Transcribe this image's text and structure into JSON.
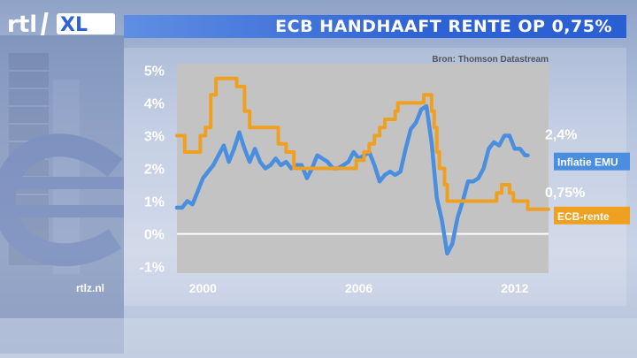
{
  "header": {
    "channel_logo_text": "rtl XL",
    "headline": "ECB HANDHAAFT RENTE OP 0,75%"
  },
  "footer": {
    "site": "rtlz.nl"
  },
  "colors": {
    "headline_bar": "#2e63d6",
    "inflation_line": "#4a8ee0",
    "ecb_line": "#f0a020",
    "plot_background": "#c3c3c3",
    "zero_line": "#ffffff"
  },
  "chart_data": {
    "type": "line",
    "source": "Bron: Thomson Datastream",
    "ylim": [
      -1.2,
      5.2
    ],
    "xlim": [
      1999.0,
      2013.3
    ],
    "y_ticks": [
      {
        "value": 5,
        "label": "5%"
      },
      {
        "value": 4,
        "label": "4%"
      },
      {
        "value": 3,
        "label": "3%"
      },
      {
        "value": 2,
        "label": "2%"
      },
      {
        "value": 1,
        "label": "1%"
      },
      {
        "value": 0,
        "label": "0%"
      },
      {
        "value": -1,
        "label": "-1%"
      }
    ],
    "x_ticks": [
      {
        "value": 2000,
        "label": "2000"
      },
      {
        "value": 2006,
        "label": "2006"
      },
      {
        "value": 2012,
        "label": "2012"
      }
    ],
    "grid": false,
    "series": [
      {
        "name": "Inflatie EMU",
        "end_label": "2,4%",
        "color": "#4a8ee0",
        "points": [
          [
            1999.0,
            0.8
          ],
          [
            1999.2,
            0.8
          ],
          [
            1999.4,
            1.0
          ],
          [
            1999.6,
            0.9
          ],
          [
            1999.8,
            1.3
          ],
          [
            2000.0,
            1.7
          ],
          [
            2000.2,
            1.9
          ],
          [
            2000.4,
            2.1
          ],
          [
            2000.6,
            2.4
          ],
          [
            2000.8,
            2.7
          ],
          [
            2001.0,
            2.2
          ],
          [
            2001.2,
            2.6
          ],
          [
            2001.4,
            3.1
          ],
          [
            2001.6,
            2.6
          ],
          [
            2001.8,
            2.2
          ],
          [
            2002.0,
            2.6
          ],
          [
            2002.2,
            2.2
          ],
          [
            2002.4,
            2.0
          ],
          [
            2002.6,
            2.1
          ],
          [
            2002.8,
            2.3
          ],
          [
            2003.0,
            2.1
          ],
          [
            2003.2,
            2.2
          ],
          [
            2003.4,
            2.0
          ],
          [
            2003.6,
            2.1
          ],
          [
            2003.8,
            2.1
          ],
          [
            2004.0,
            1.7
          ],
          [
            2004.2,
            2.0
          ],
          [
            2004.4,
            2.4
          ],
          [
            2004.6,
            2.3
          ],
          [
            2004.8,
            2.2
          ],
          [
            2005.0,
            2.0
          ],
          [
            2005.2,
            2.0
          ],
          [
            2005.4,
            2.1
          ],
          [
            2005.6,
            2.2
          ],
          [
            2005.8,
            2.5
          ],
          [
            2006.0,
            2.3
          ],
          [
            2006.2,
            2.4
          ],
          [
            2006.4,
            2.5
          ],
          [
            2006.6,
            2.1
          ],
          [
            2006.8,
            1.6
          ],
          [
            2007.0,
            1.8
          ],
          [
            2007.2,
            1.9
          ],
          [
            2007.4,
            1.8
          ],
          [
            2007.6,
            1.9
          ],
          [
            2007.8,
            2.6
          ],
          [
            2008.0,
            3.2
          ],
          [
            2008.2,
            3.4
          ],
          [
            2008.4,
            3.8
          ],
          [
            2008.6,
            3.9
          ],
          [
            2008.8,
            2.8
          ],
          [
            2009.0,
            1.1
          ],
          [
            2009.2,
            0.4
          ],
          [
            2009.4,
            -0.6
          ],
          [
            2009.6,
            -0.3
          ],
          [
            2009.8,
            0.5
          ],
          [
            2010.0,
            1.0
          ],
          [
            2010.2,
            1.6
          ],
          [
            2010.4,
            1.6
          ],
          [
            2010.6,
            1.7
          ],
          [
            2010.8,
            2.0
          ],
          [
            2011.0,
            2.6
          ],
          [
            2011.2,
            2.8
          ],
          [
            2011.4,
            2.7
          ],
          [
            2011.6,
            3.0
          ],
          [
            2011.8,
            3.0
          ],
          [
            2012.0,
            2.6
          ],
          [
            2012.2,
            2.6
          ],
          [
            2012.4,
            2.4
          ],
          [
            2012.5,
            2.4
          ]
        ]
      },
      {
        "name": "ECB-rente",
        "end_label": "0,75%",
        "color": "#f0a020",
        "points": [
          [
            1999.0,
            3.0
          ],
          [
            1999.3,
            2.5
          ],
          [
            1999.9,
            3.0
          ],
          [
            2000.1,
            3.25
          ],
          [
            2000.3,
            4.25
          ],
          [
            2000.5,
            4.75
          ],
          [
            2001.3,
            4.5
          ],
          [
            2001.6,
            3.75
          ],
          [
            2001.8,
            3.25
          ],
          [
            2002.9,
            2.75
          ],
          [
            2003.2,
            2.5
          ],
          [
            2003.5,
            2.0
          ],
          [
            2005.9,
            2.25
          ],
          [
            2006.2,
            2.5
          ],
          [
            2006.4,
            2.75
          ],
          [
            2006.6,
            3.0
          ],
          [
            2006.8,
            3.25
          ],
          [
            2007.0,
            3.5
          ],
          [
            2007.4,
            3.75
          ],
          [
            2007.5,
            4.0
          ],
          [
            2008.5,
            4.25
          ],
          [
            2008.8,
            3.75
          ],
          [
            2008.9,
            3.25
          ],
          [
            2009.0,
            2.5
          ],
          [
            2009.1,
            2.0
          ],
          [
            2009.3,
            1.5
          ],
          [
            2009.4,
            1.0
          ],
          [
            2011.3,
            1.25
          ],
          [
            2011.5,
            1.5
          ],
          [
            2011.8,
            1.25
          ],
          [
            2011.95,
            1.0
          ],
          [
            2012.5,
            0.75
          ]
        ]
      }
    ]
  }
}
